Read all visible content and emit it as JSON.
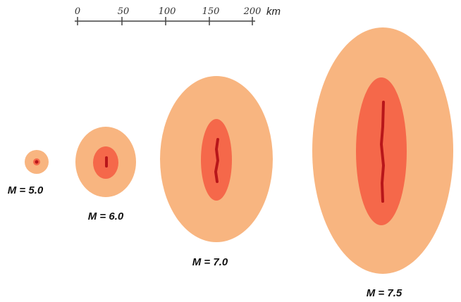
{
  "scale": {
    "ticks": [
      "0",
      "50",
      "100",
      "150",
      "200"
    ],
    "unit": "km"
  },
  "events": [
    {
      "label": "M = 5.0"
    },
    {
      "label": "M = 6.0"
    },
    {
      "label": "M = 7.0"
    },
    {
      "label": "M = 7.5"
    }
  ]
}
